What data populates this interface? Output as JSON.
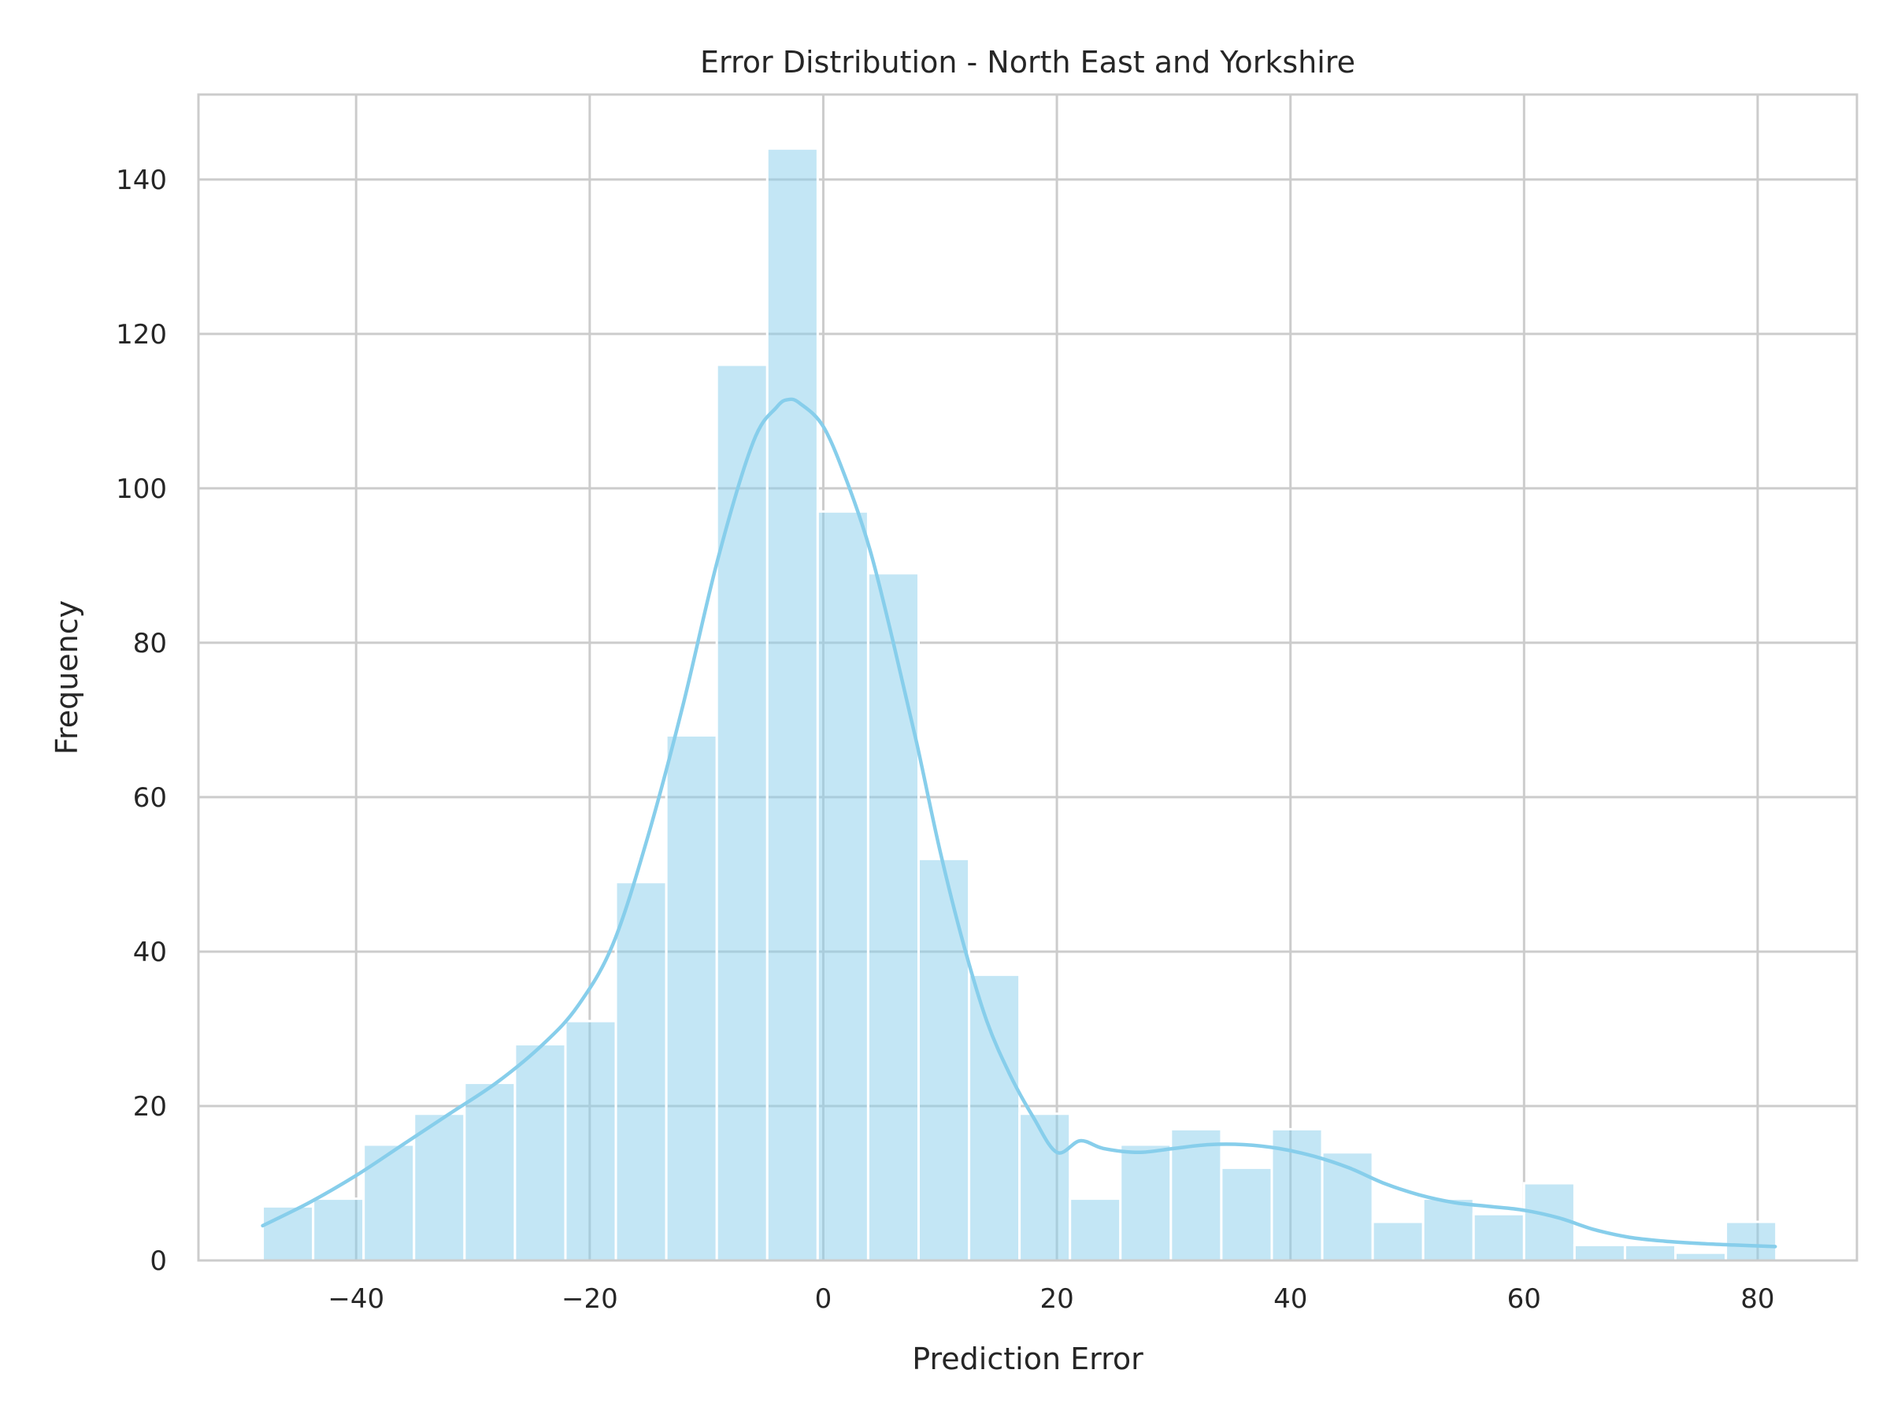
{
  "chart_data": {
    "type": "bar",
    "subtype": "histogram",
    "title": "Error Distribution - North East and Yorkshire",
    "xlabel": "Prediction Error",
    "ylabel": "Frequency",
    "xlim": [
      -53.5,
      88.5
    ],
    "ylim": [
      0,
      151
    ],
    "xticks": [
      -40,
      -20,
      0,
      20,
      40,
      60,
      80
    ],
    "xtick_labels": [
      "−40",
      "−20",
      "0",
      "20",
      "40",
      "60",
      "80"
    ],
    "yticks": [
      0,
      20,
      40,
      60,
      80,
      100,
      120,
      140
    ],
    "ytick_labels": [
      "0",
      "20",
      "40",
      "60",
      "80",
      "100",
      "120",
      "140"
    ],
    "grid": true,
    "bar_color": "#87ceeb",
    "kde_color": "#87ceeb",
    "bin_width": 4.32,
    "bin_starts": [
      -48.0,
      -43.68,
      -39.36,
      -35.04,
      -30.72,
      -26.4,
      -22.08,
      -17.76,
      -13.44,
      -9.12,
      -4.8,
      -0.48,
      3.84,
      8.16,
      12.48,
      16.8,
      21.12,
      25.44,
      29.76,
      34.08,
      38.4,
      42.72,
      47.04,
      51.36,
      55.68,
      60.0,
      64.32,
      68.64,
      72.96,
      77.28
    ],
    "values": [
      7,
      8,
      15,
      19,
      23,
      28,
      31,
      49,
      68,
      116,
      144,
      97,
      89,
      52,
      37,
      19,
      8,
      15,
      17,
      12,
      17,
      14,
      5,
      8,
      6,
      10,
      2,
      2,
      1,
      5
    ],
    "kde": {
      "x": [
        -48,
        -44,
        -40,
        -36,
        -32,
        -28,
        -24,
        -21,
        -18,
        -15,
        -12,
        -9,
        -6,
        -4,
        -3,
        -2,
        0,
        2,
        4,
        6,
        8,
        10,
        12,
        14,
        16,
        18,
        20,
        22,
        24,
        27,
        30,
        33,
        36,
        39,
        42,
        45,
        48,
        51,
        54,
        57,
        60,
        63,
        66,
        69,
        72,
        75,
        78,
        81.5
      ],
      "y": [
        4.5,
        7.5,
        11,
        15,
        19,
        23,
        28,
        33,
        41,
        55,
        72,
        91,
        106,
        110.5,
        111.5,
        111,
        108,
        101,
        92,
        80,
        67,
        53,
        41,
        31,
        24,
        18.5,
        14,
        15.5,
        14.5,
        14,
        14.5,
        15,
        15,
        14.5,
        13.5,
        12,
        10,
        8.5,
        7.5,
        7,
        6.5,
        5.5,
        4,
        3,
        2.5,
        2.2,
        2,
        1.8
      ]
    }
  }
}
